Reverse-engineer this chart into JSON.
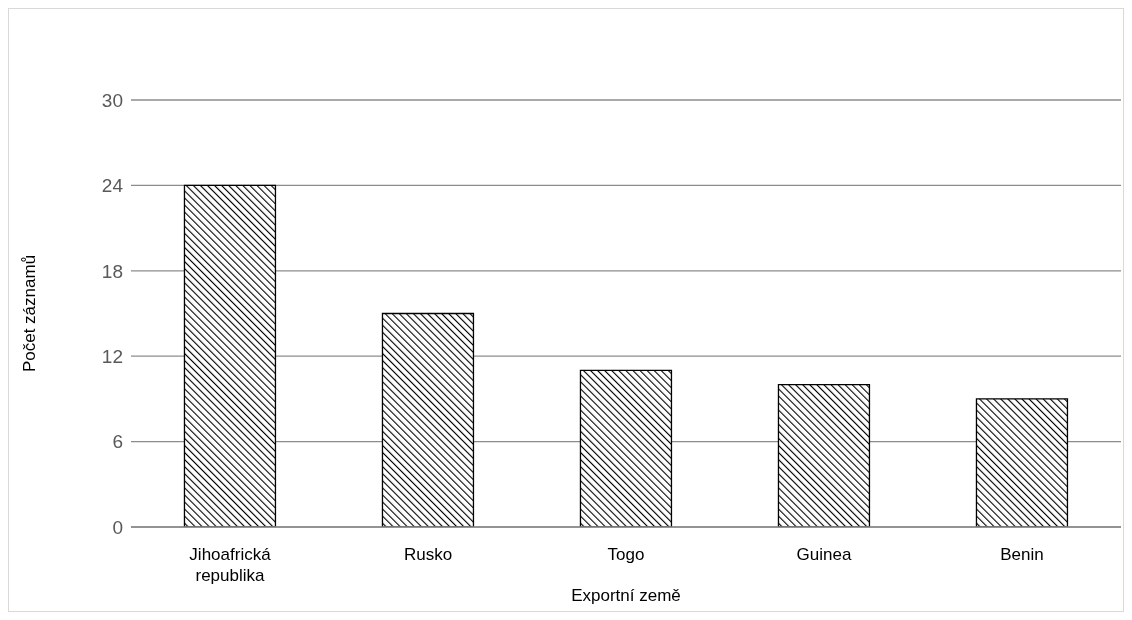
{
  "chart_data": {
    "type": "bar",
    "xlabel": "Exportní země",
    "ylabel": "Počet záznamů",
    "categories": [
      "Jihoafrická republika",
      "Rusko",
      "Togo",
      "Guinea",
      "Benin"
    ],
    "values": [
      24,
      15,
      11,
      10,
      9
    ],
    "color": "#000000",
    "ylim": [
      0,
      30
    ],
    "yticks": [
      0,
      6,
      12,
      18,
      24,
      30
    ],
    "grid": "y"
  }
}
